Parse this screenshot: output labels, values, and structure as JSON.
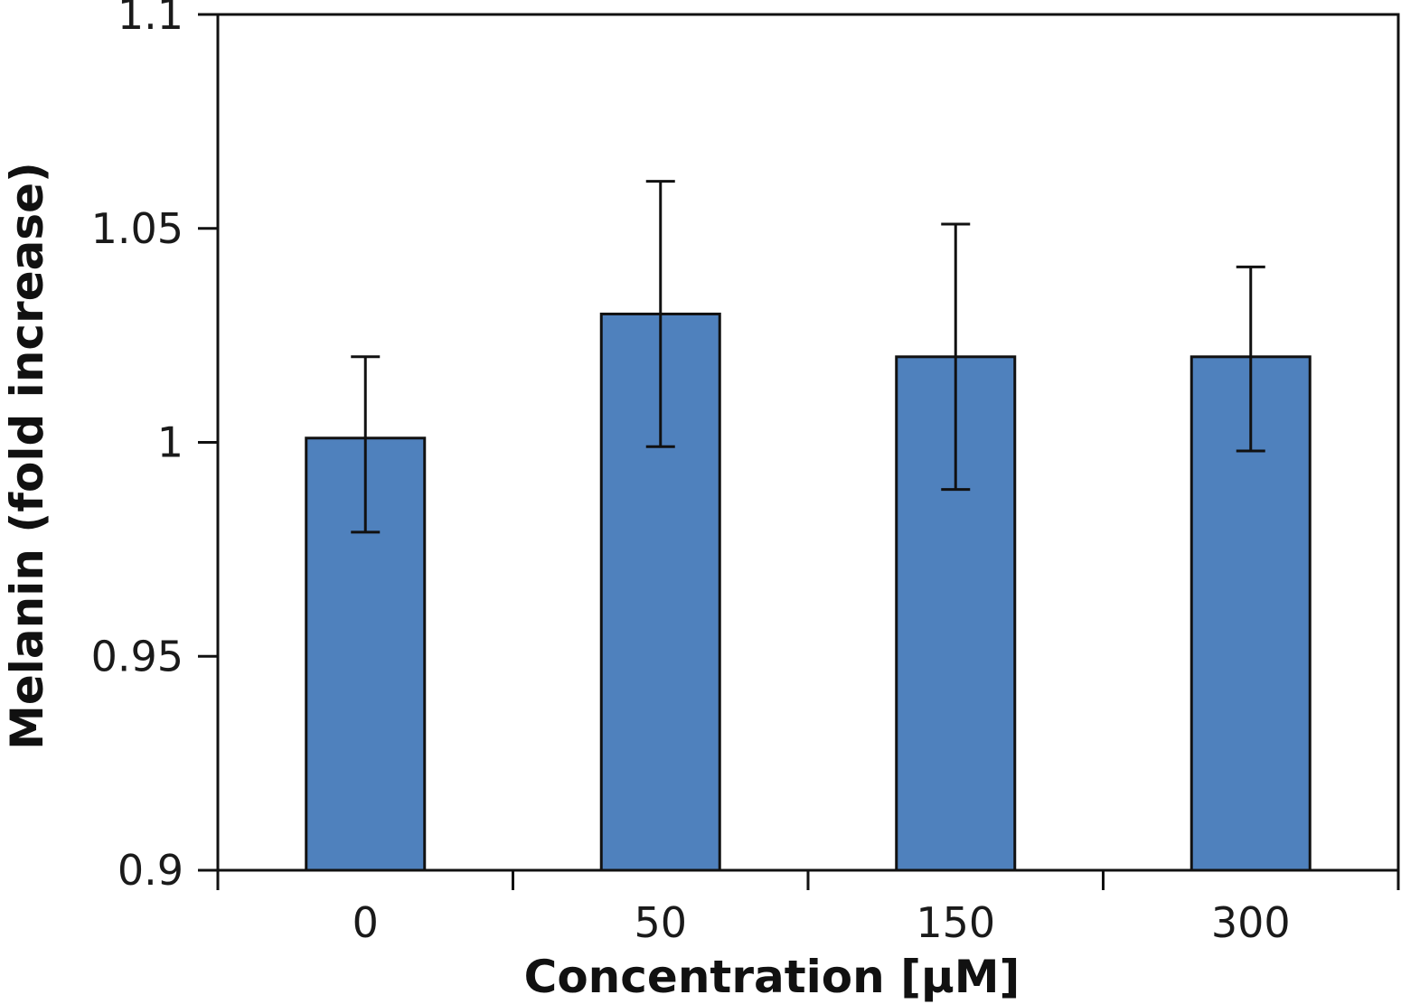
{
  "chart_data": {
    "type": "bar",
    "xlabel": "Concentration [μM]",
    "ylabel": "Melanin (fold increase)",
    "categories": [
      "0",
      "50",
      "150",
      "300"
    ],
    "values": [
      1.001,
      1.03,
      1.02,
      1.02
    ],
    "error_low": [
      0.979,
      0.999,
      0.989,
      0.998
    ],
    "error_high": [
      1.02,
      1.061,
      1.051,
      1.041
    ],
    "ylim": [
      0.9,
      1.1
    ],
    "yticks": [
      "0.9",
      "0.95",
      "1",
      "1.05",
      "1.1"
    ],
    "bar_color": "#4f81bd",
    "grid": false,
    "legend": "none"
  }
}
